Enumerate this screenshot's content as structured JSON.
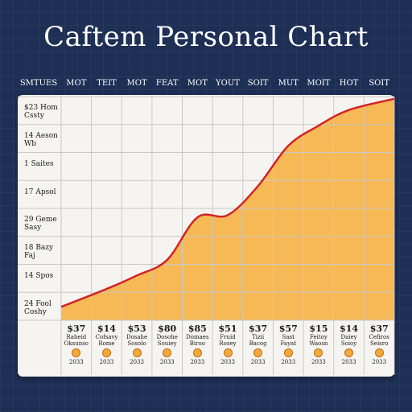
{
  "title": "Caftem Personal Chart",
  "header_label": "SMTUES",
  "colors": {
    "fill": "#f7b955",
    "line": "#d2232a",
    "grid": "#c8c8c8",
    "background": "#1e2f55"
  },
  "chart_data": {
    "type": "area",
    "title": "Caftem Personal Chart",
    "categories": [
      "MOT",
      "TEIT",
      "MOT",
      "FEAT",
      "MOT",
      "YOUT",
      "SOIT",
      "MUT",
      "MOIT",
      "HOT",
      "SOIT"
    ],
    "row_labels": [
      "$23 Hom Cssty",
      "14 Aeson Wb",
      "1 Saites",
      "17 Apsol",
      "29 Geme Sasy",
      "18 Bazy Faj",
      "14 Spos",
      "24 Fool Coshy"
    ],
    "series": [
      {
        "values": [
          0.06,
          0.14,
          0.2,
          0.27,
          0.46,
          0.47,
          0.6,
          0.78,
          0.87,
          0.94,
          0.99
        ]
      }
    ],
    "ylim": [
      0,
      1
    ],
    "grid": true,
    "bottom_values": [
      "$37",
      "$14",
      "$53",
      "$80",
      "$85",
      "$51",
      "$37",
      "$57",
      "$15",
      "$14",
      "$37"
    ],
    "bottom_labels": [
      "Raheid Oksunso",
      "Cofsavy Rome",
      "Dosahe Sosolo",
      "Dosohe Souiey",
      "Domaes Biroo",
      "Fruid Rosey",
      "Tizii Bacog",
      "Sast Fayat",
      "Feitoy Waosn",
      "Daiey Soioy",
      "Cefiros Seisro"
    ],
    "bottom_years": [
      "2033",
      "2033",
      "2033",
      "2033",
      "2033",
      "2033",
      "2033",
      "2033",
      "2033",
      "2033",
      "2033"
    ]
  }
}
